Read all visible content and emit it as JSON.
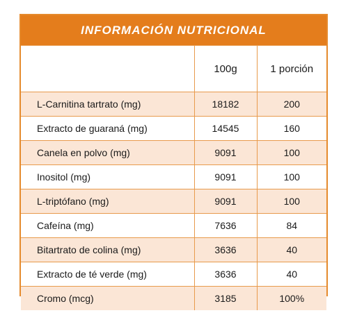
{
  "title": "INFORMACIÓN NUTRICIONAL",
  "columns": [
    "",
    "100g",
    "1 porción"
  ],
  "rows": [
    {
      "name": "L-Carnitina tartrato (mg)",
      "per100g": "18182",
      "serving": "200"
    },
    {
      "name": "Extracto de guaraná (mg)",
      "per100g": "14545",
      "serving": "160"
    },
    {
      "name": "Canela en polvo (mg)",
      "per100g": "9091",
      "serving": "100"
    },
    {
      "name": "Inositol (mg)",
      "per100g": "9091",
      "serving": "100"
    },
    {
      "name": "L-triptófano (mg)",
      "per100g": "9091",
      "serving": "100"
    },
    {
      "name": "Cafeína (mg)",
      "per100g": "7636",
      "serving": "84"
    },
    {
      "name": "Bitartrato de colina (mg)",
      "per100g": "3636",
      "serving": "40"
    },
    {
      "name": "Extracto de té verde (mg)",
      "per100g": "3636",
      "serving": "40"
    },
    {
      "name": "Cromo (mcg)",
      "per100g": "3185",
      "serving": "100%"
    }
  ],
  "colors": {
    "banner": "#e47d1c",
    "border": "#e89a4b",
    "stripe": "#fbe6d6"
  }
}
